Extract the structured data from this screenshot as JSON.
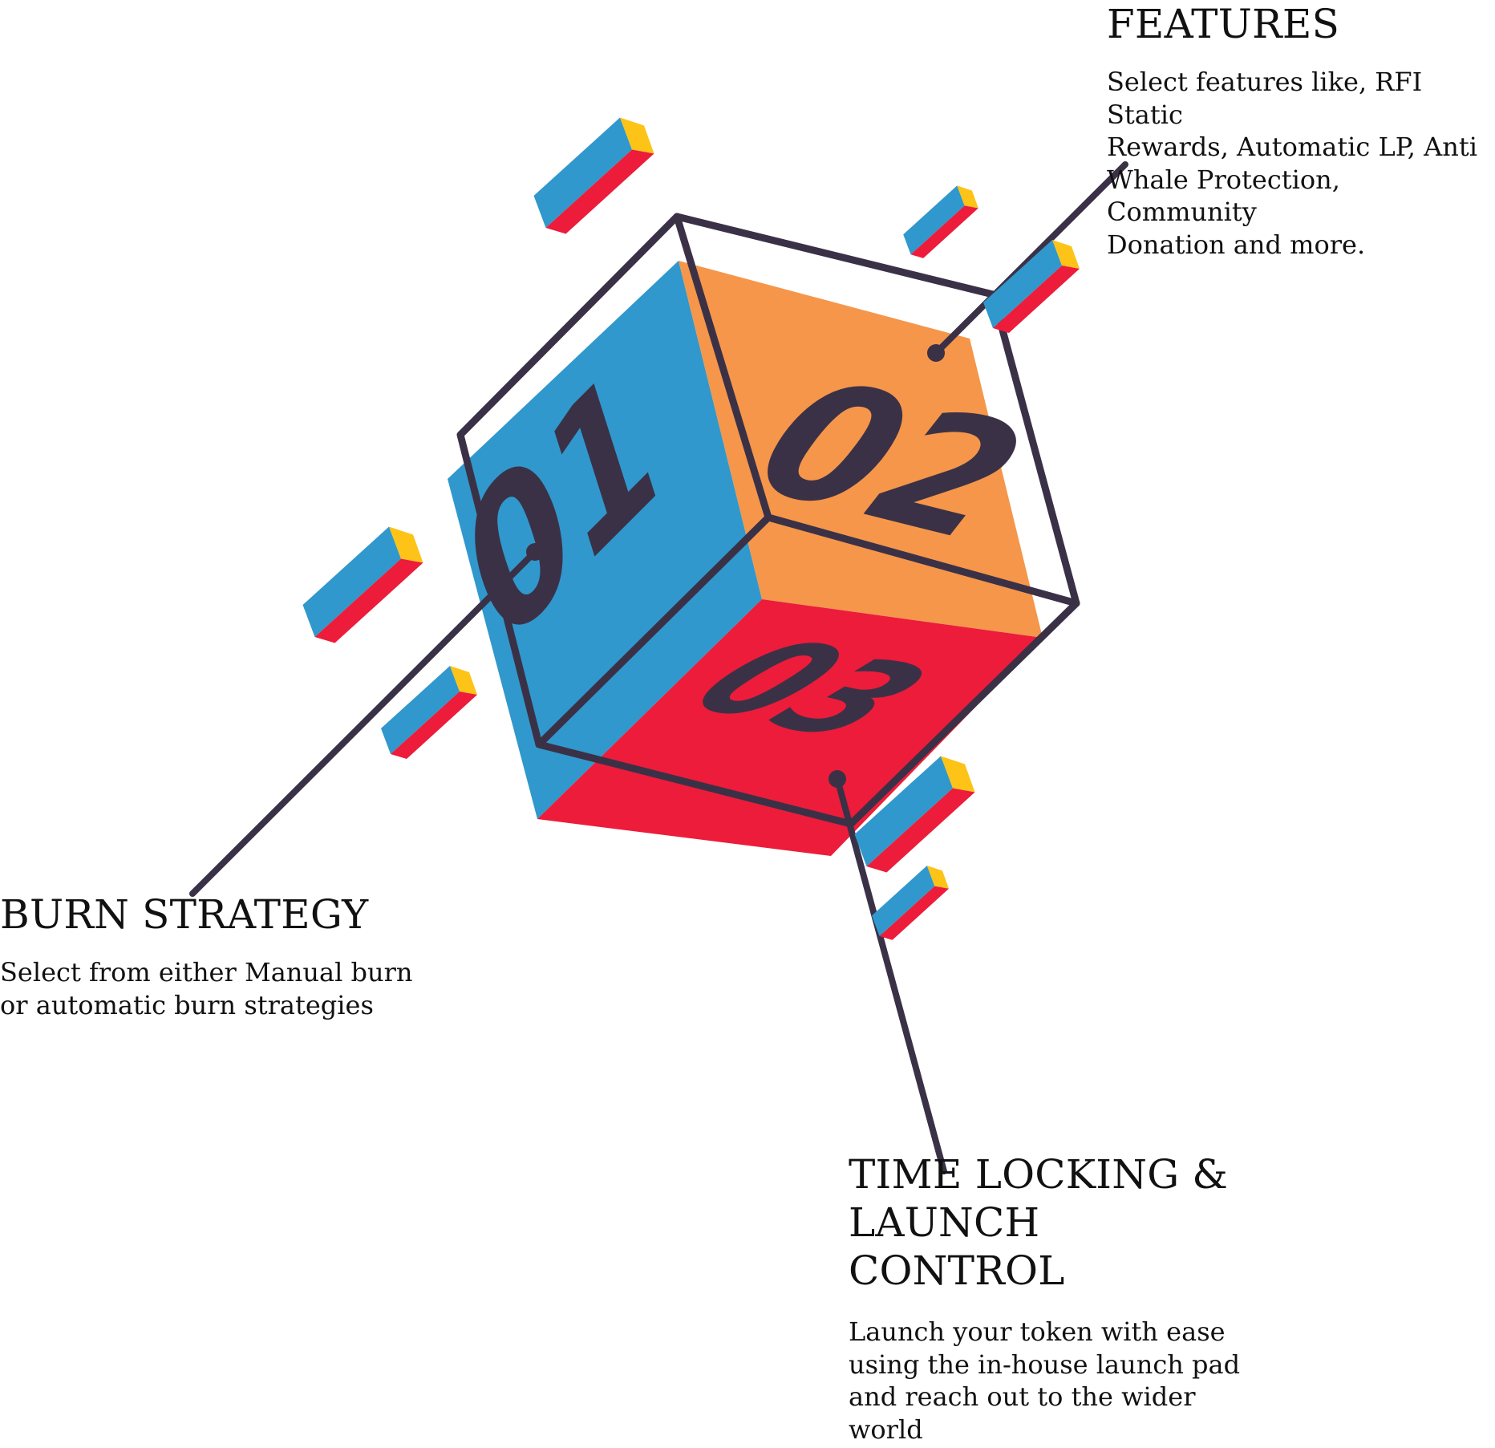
{
  "colors": {
    "blue": "#3098cc",
    "orange": "#f5964a",
    "red": "#ec1c3a",
    "yellow": "#fdc316",
    "outline": "#3b3147",
    "text": "#111111"
  },
  "cube": {
    "faces": [
      {
        "number": "01",
        "color": "blue"
      },
      {
        "number": "02",
        "color": "orange"
      },
      {
        "number": "03",
        "color": "red"
      }
    ]
  },
  "callouts": {
    "features": {
      "title": "FEATURES",
      "lines": [
        "Select features like, RFI Static",
        "Rewards, Automatic LP, Anti",
        "Whale Protection, Community",
        "Donation and more."
      ]
    },
    "burn": {
      "title": "BURN STRATEGY",
      "lines": [
        "Select from either Manual burn",
        "or automatic burn strategies"
      ]
    },
    "time": {
      "title_lines": [
        "TIME LOCKING &",
        "LAUNCH CONTROL"
      ],
      "lines": [
        "Launch your token with ease",
        "using the in-house launch pad",
        "and reach out to the wider",
        "world"
      ]
    }
  },
  "decor": {
    "small_cubes": [
      {
        "name": "deco-cube-top",
        "icon": "cube-icon"
      },
      {
        "name": "deco-cube-upper-right-small",
        "icon": "cube-icon"
      },
      {
        "name": "deco-cube-upper-right",
        "icon": "cube-icon"
      },
      {
        "name": "deco-cube-left",
        "icon": "cube-icon"
      },
      {
        "name": "deco-cube-left-lower",
        "icon": "cube-icon"
      },
      {
        "name": "deco-cube-lower-right",
        "icon": "cube-icon"
      },
      {
        "name": "deco-cube-lower-right-small",
        "icon": "cube-icon"
      }
    ]
  }
}
